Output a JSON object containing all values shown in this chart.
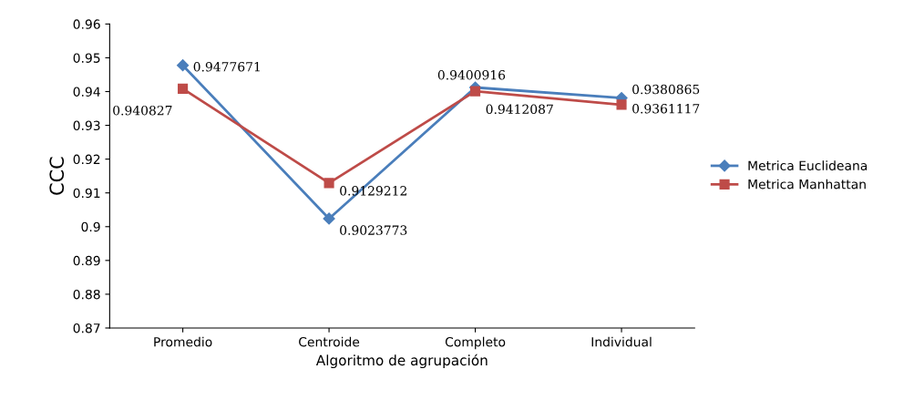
{
  "chart_data": {
    "type": "line",
    "xlabel": "Algoritmo de agrupación",
    "ylabel": "CCC",
    "categories": [
      "Promedio",
      "Centroide",
      "Completo",
      "Individual"
    ],
    "series": [
      {
        "name": "Metrica Euclideana",
        "color": "#4a7ebb",
        "marker": "diamond",
        "values": [
          0.9477671,
          0.9023773,
          0.9412087,
          0.9380865
        ]
      },
      {
        "name": "Metrica Manhattan",
        "color": "#be4b48",
        "marker": "square",
        "values": [
          0.940827,
          0.9129212,
          0.9400916,
          0.9361117
        ]
      }
    ],
    "ylim": [
      0.87,
      0.96
    ],
    "yticks": [
      0.87,
      0.88,
      0.89,
      0.9,
      0.91,
      0.92,
      0.93,
      0.94,
      0.95,
      0.96
    ],
    "grid": false,
    "legend": "right",
    "data_labels": true
  }
}
